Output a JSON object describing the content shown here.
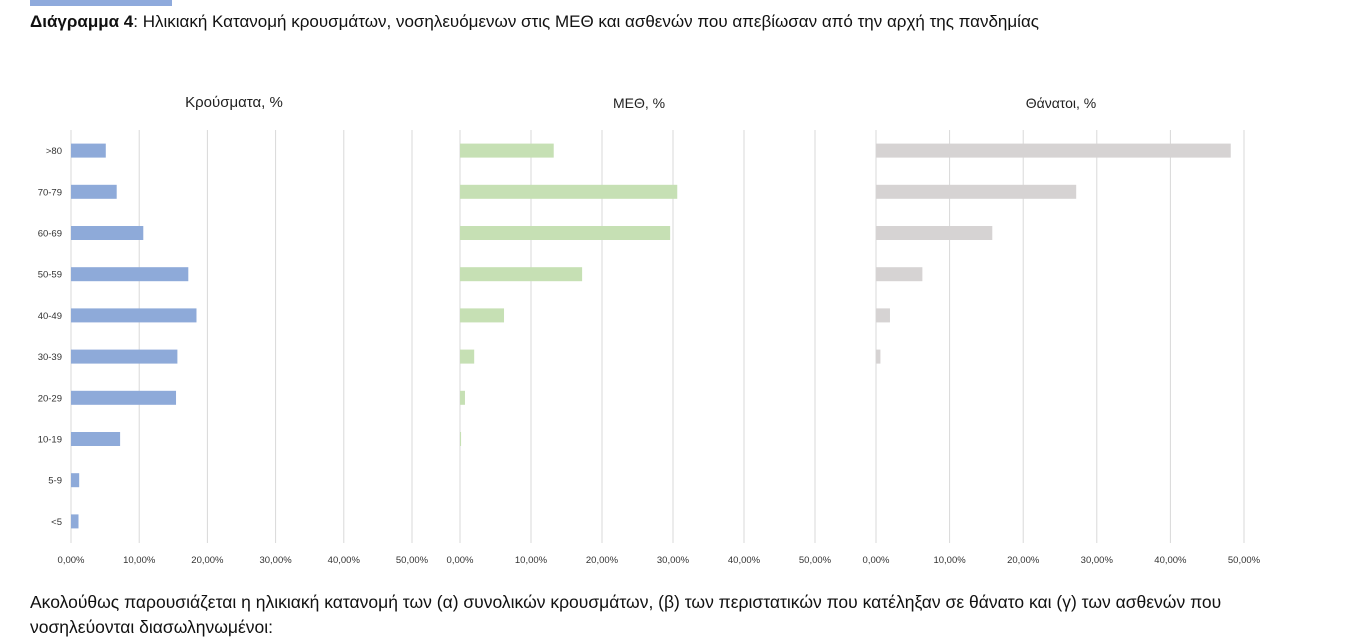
{
  "caption": {
    "label": "Διάγραμμα 4",
    "text": ": Ηλικιακή Κατανομή κρουσμάτων, νοσηλευόμενων στις ΜΕΘ και ασθενών που απεβίωσαν από την αρχή της πανδημίας"
  },
  "chart_data": [
    {
      "type": "bar",
      "orientation": "horizontal",
      "title": "Κρούσματα, %",
      "color": "#8eaad9",
      "categories": [
        ">80",
        "70-79",
        "60-69",
        "50-59",
        "40-49",
        "30-39",
        "20-29",
        "10-19",
        "5-9",
        "<5"
      ],
      "values": [
        5.1,
        6.7,
        10.6,
        17.2,
        18.4,
        15.6,
        15.4,
        7.2,
        1.2,
        1.1
      ],
      "xlim": [
        0,
        50
      ],
      "xticks": [
        "0,00%",
        "10,00%",
        "20,00%",
        "30,00%",
        "40,00%",
        "50,00%"
      ],
      "grid": true
    },
    {
      "type": "bar",
      "orientation": "horizontal",
      "title": "ΜΕΘ, %",
      "color": "#c6e0b4",
      "categories": [
        ">80",
        "70-79",
        "60-69",
        "50-59",
        "40-49",
        "30-39",
        "20-29",
        "10-19",
        "5-9",
        "<5"
      ],
      "values": [
        13.2,
        30.6,
        29.6,
        17.2,
        6.2,
        2.0,
        0.7,
        0.15,
        0,
        0
      ],
      "xlim": [
        0,
        50
      ],
      "xticks": [
        "0,00%",
        "10,00%",
        "20,00%",
        "30,00%",
        "40,00%",
        "50,00%"
      ],
      "grid": true
    },
    {
      "type": "bar",
      "orientation": "horizontal",
      "title": "Θάνατοι, %",
      "color": "#d6d3d3",
      "categories": [
        ">80",
        "70-79",
        "60-69",
        "50-59",
        "40-49",
        "30-39",
        "20-29",
        "10-19",
        "5-9",
        "<5"
      ],
      "values": [
        48.2,
        27.2,
        15.8,
        6.3,
        1.9,
        0.6,
        0,
        0,
        0,
        0
      ],
      "xlim": [
        0,
        50
      ],
      "xticks": [
        "0,00%",
        "10,00%",
        "20,00%",
        "30,00%",
        "40,00%",
        "50,00%"
      ],
      "grid": true
    }
  ],
  "body_text": "Ακολούθως παρουσιάζεται η ηλικιακή κατανομή των (α) συνολικών κρουσμάτων, (β) των περιστατικών που κατέληξαν σε θάνατο και (γ) των ασθενών που νοσηλεύονται διασωληνωμένοι:"
}
